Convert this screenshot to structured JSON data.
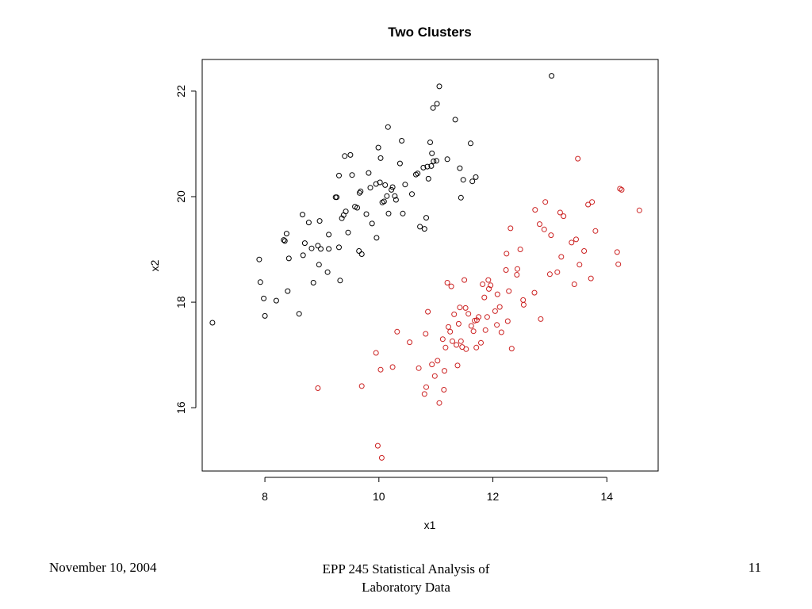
{
  "chart_data": {
    "type": "scatter",
    "title": "Two Clusters",
    "xlabel": "x1",
    "ylabel": "x2",
    "xlim": [
      6.9,
      14.9
    ],
    "ylim": [
      14.8,
      22.6
    ],
    "x_ticks": [
      "8",
      "10",
      "12",
      "14"
    ],
    "y_ticks": [
      "16",
      "18",
      "20",
      "22"
    ],
    "grid": false,
    "legend": "none",
    "series": [
      {
        "color": "#000000",
        "marker": "open-circle",
        "points": [
          [
            7.08,
            17.61
          ],
          [
            7.9,
            18.81
          ],
          [
            7.92,
            18.38
          ],
          [
            7.98,
            18.07
          ],
          [
            8.0,
            17.74
          ],
          [
            8.2,
            18.03
          ],
          [
            8.35,
            19.16
          ],
          [
            8.33,
            19.18
          ],
          [
            8.38,
            19.3
          ],
          [
            8.4,
            18.21
          ],
          [
            8.42,
            18.83
          ],
          [
            8.6,
            17.78
          ],
          [
            8.66,
            19.66
          ],
          [
            8.67,
            18.89
          ],
          [
            8.7,
            19.12
          ],
          [
            8.77,
            19.51
          ],
          [
            8.82,
            19.02
          ],
          [
            8.85,
            18.37
          ],
          [
            8.93,
            19.07
          ],
          [
            8.96,
            19.54
          ],
          [
            8.95,
            18.71
          ],
          [
            8.98,
            19.01
          ],
          [
            9.1,
            18.57
          ],
          [
            9.12,
            19.01
          ],
          [
            9.12,
            19.28
          ],
          [
            9.24,
            19.99
          ],
          [
            9.26,
            19.99
          ],
          [
            9.3,
            20.4
          ],
          [
            9.3,
            19.04
          ],
          [
            9.32,
            18.41
          ],
          [
            9.35,
            19.59
          ],
          [
            9.38,
            19.65
          ],
          [
            9.4,
            20.77
          ],
          [
            9.42,
            19.72
          ],
          [
            9.46,
            19.32
          ],
          [
            9.5,
            20.79
          ],
          [
            9.53,
            20.41
          ],
          [
            9.58,
            19.81
          ],
          [
            9.62,
            19.79
          ],
          [
            9.65,
            18.97
          ],
          [
            9.66,
            20.07
          ],
          [
            9.68,
            20.1
          ],
          [
            9.7,
            18.91
          ],
          [
            9.78,
            19.67
          ],
          [
            9.82,
            20.45
          ],
          [
            9.85,
            20.17
          ],
          [
            9.88,
            19.49
          ],
          [
            9.95,
            20.24
          ],
          [
            9.96,
            19.22
          ],
          [
            9.99,
            20.93
          ],
          [
            10.03,
            20.73
          ],
          [
            10.02,
            20.27
          ],
          [
            10.06,
            19.89
          ],
          [
            10.09,
            19.91
          ],
          [
            10.11,
            20.22
          ],
          [
            10.14,
            20.01
          ],
          [
            10.16,
            21.32
          ],
          [
            10.17,
            19.68
          ],
          [
            10.22,
            20.13
          ],
          [
            10.24,
            20.18
          ],
          [
            10.28,
            20.01
          ],
          [
            10.3,
            19.94
          ],
          [
            10.37,
            20.63
          ],
          [
            10.4,
            21.06
          ],
          [
            10.42,
            19.68
          ],
          [
            10.46,
            20.23
          ],
          [
            10.58,
            20.05
          ],
          [
            10.65,
            20.42
          ],
          [
            10.68,
            20.44
          ],
          [
            10.72,
            19.43
          ],
          [
            10.78,
            20.55
          ],
          [
            10.8,
            19.39
          ],
          [
            10.83,
            19.6
          ],
          [
            10.85,
            20.57
          ],
          [
            10.87,
            20.34
          ],
          [
            10.9,
            21.03
          ],
          [
            10.92,
            20.58
          ],
          [
            10.93,
            20.82
          ],
          [
            10.95,
            21.68
          ],
          [
            10.96,
            20.67
          ],
          [
            11.01,
            20.68
          ],
          [
            11.02,
            21.76
          ],
          [
            11.06,
            22.09
          ],
          [
            11.2,
            20.71
          ],
          [
            11.34,
            21.46
          ],
          [
            11.42,
            20.54
          ],
          [
            11.44,
            19.98
          ],
          [
            11.48,
            20.32
          ],
          [
            11.61,
            21.01
          ],
          [
            11.64,
            20.29
          ],
          [
            11.7,
            20.37
          ],
          [
            13.03,
            22.29
          ]
        ]
      },
      {
        "color": "#cc2222",
        "marker": "open-circle",
        "points": [
          [
            8.93,
            16.37
          ],
          [
            9.7,
            16.41
          ],
          [
            9.95,
            17.04
          ],
          [
            9.98,
            15.28
          ],
          [
            10.03,
            16.72
          ],
          [
            10.05,
            15.05
          ],
          [
            10.24,
            16.77
          ],
          [
            10.32,
            17.44
          ],
          [
            10.54,
            17.24
          ],
          [
            10.7,
            16.75
          ],
          [
            10.8,
            16.26
          ],
          [
            10.82,
            17.4
          ],
          [
            10.83,
            16.39
          ],
          [
            10.86,
            17.82
          ],
          [
            10.93,
            16.82
          ],
          [
            10.98,
            16.6
          ],
          [
            11.03,
            16.89
          ],
          [
            11.06,
            16.09
          ],
          [
            11.12,
            17.3
          ],
          [
            11.14,
            16.34
          ],
          [
            11.15,
            16.7
          ],
          [
            11.17,
            17.14
          ],
          [
            11.2,
            18.37
          ],
          [
            11.22,
            17.53
          ],
          [
            11.25,
            17.44
          ],
          [
            11.27,
            18.3
          ],
          [
            11.29,
            17.26
          ],
          [
            11.32,
            17.77
          ],
          [
            11.36,
            17.19
          ],
          [
            11.38,
            16.8
          ],
          [
            11.4,
            17.59
          ],
          [
            11.42,
            17.9
          ],
          [
            11.44,
            17.26
          ],
          [
            11.46,
            17.15
          ],
          [
            11.5,
            18.42
          ],
          [
            11.52,
            17.89
          ],
          [
            11.53,
            17.11
          ],
          [
            11.57,
            17.78
          ],
          [
            11.62,
            17.55
          ],
          [
            11.66,
            17.45
          ],
          [
            11.68,
            17.65
          ],
          [
            11.71,
            17.14
          ],
          [
            11.72,
            17.66
          ],
          [
            11.75,
            17.72
          ],
          [
            11.79,
            17.23
          ],
          [
            11.82,
            18.34
          ],
          [
            11.85,
            18.09
          ],
          [
            11.87,
            17.47
          ],
          [
            11.9,
            17.72
          ],
          [
            11.92,
            18.42
          ],
          [
            11.93,
            18.25
          ],
          [
            11.96,
            18.32
          ],
          [
            12.04,
            17.83
          ],
          [
            12.07,
            17.57
          ],
          [
            12.08,
            18.15
          ],
          [
            12.12,
            17.91
          ],
          [
            12.15,
            17.43
          ],
          [
            12.23,
            18.61
          ],
          [
            12.24,
            18.92
          ],
          [
            12.26,
            17.64
          ],
          [
            12.28,
            18.21
          ],
          [
            12.31,
            19.4
          ],
          [
            12.33,
            17.12
          ],
          [
            12.42,
            18.52
          ],
          [
            12.43,
            18.63
          ],
          [
            12.48,
            19.0
          ],
          [
            12.53,
            18.04
          ],
          [
            12.54,
            17.95
          ],
          [
            12.73,
            18.18
          ],
          [
            12.74,
            19.75
          ],
          [
            12.82,
            19.48
          ],
          [
            12.84,
            17.68
          ],
          [
            12.9,
            19.38
          ],
          [
            12.92,
            19.9
          ],
          [
            13.0,
            18.53
          ],
          [
            13.02,
            19.27
          ],
          [
            13.13,
            18.57
          ],
          [
            13.18,
            19.7
          ],
          [
            13.2,
            18.86
          ],
          [
            13.24,
            19.63
          ],
          [
            13.38,
            19.13
          ],
          [
            13.43,
            18.34
          ],
          [
            13.46,
            19.19
          ],
          [
            13.49,
            20.72
          ],
          [
            13.52,
            18.71
          ],
          [
            13.6,
            18.97
          ],
          [
            13.67,
            19.85
          ],
          [
            13.72,
            18.45
          ],
          [
            13.74,
            19.9
          ],
          [
            13.8,
            19.35
          ],
          [
            14.18,
            18.95
          ],
          [
            14.2,
            18.72
          ],
          [
            14.23,
            20.15
          ],
          [
            14.26,
            20.13
          ],
          [
            14.57,
            19.74
          ]
        ]
      }
    ]
  },
  "footer": {
    "date": "November 10, 2004",
    "course_line1": "EPP 245 Statistical Analysis of",
    "course_line2": "Laboratory Data",
    "page": "11"
  }
}
